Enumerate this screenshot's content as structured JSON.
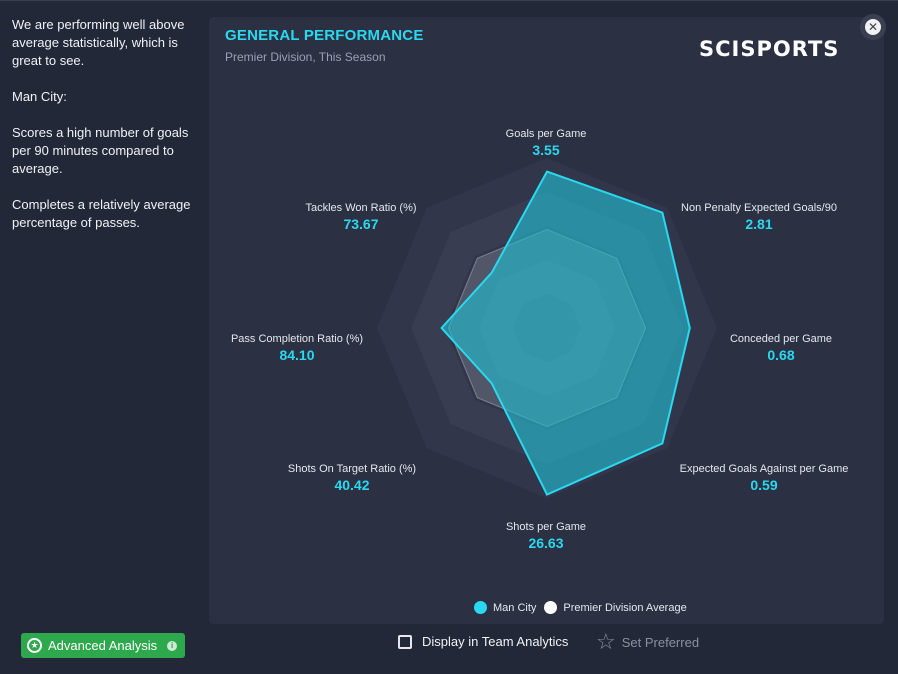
{
  "sidebar": {
    "paragraphs": [
      "We are performing well above average statistically, which is great to see.",
      "Man City:",
      "Scores a high number of goals per 90 minutes compared to average.",
      "Completes a relatively average percentage of passes."
    ]
  },
  "panel": {
    "title": "GENERAL PERFORMANCE",
    "subtitle": "Premier Division, This Season",
    "brand": "SCISPORTS"
  },
  "close_icon": "close-icon",
  "chart_data": {
    "type": "radar",
    "axes": [
      {
        "name": "Goals per Game",
        "value": "3.55",
        "team": 0.92,
        "avg": 0.58
      },
      {
        "name": "Non Penalty Expected Goals/90",
        "value": "2.81",
        "team": 0.96,
        "avg": 0.58
      },
      {
        "name": "Conceded per Game",
        "value": "0.68",
        "team": 0.84,
        "avg": 0.58
      },
      {
        "name": "Expected Goals Against per Game",
        "value": "0.59",
        "team": 0.96,
        "avg": 0.58
      },
      {
        "name": "Shots per Game",
        "value": "26.63",
        "team": 0.98,
        "avg": 0.58
      },
      {
        "name": "Shots On Target Ratio (%)",
        "value": "40.42",
        "team": 0.46,
        "avg": 0.58
      },
      {
        "name": "Pass Completion Ratio (%)",
        "value": "84.10",
        "team": 0.62,
        "avg": 0.58
      },
      {
        "name": "Tackles Won Ratio (%)",
        "value": "73.67",
        "team": 0.46,
        "avg": 0.58
      }
    ],
    "series": [
      {
        "name": "Man City",
        "color": "#2ad8f0"
      },
      {
        "name": "Premier Division Average",
        "color": "#ffffff"
      }
    ],
    "legend_position": "bottom-right"
  },
  "footer": {
    "advanced_analysis_label": "Advanced Analysis",
    "display_team_analytics_label": "Display in Team Analytics",
    "set_preferred_label": "Set Preferred"
  },
  "colors": {
    "accent": "#2ad8f0",
    "button_green": "#2ea84c"
  }
}
